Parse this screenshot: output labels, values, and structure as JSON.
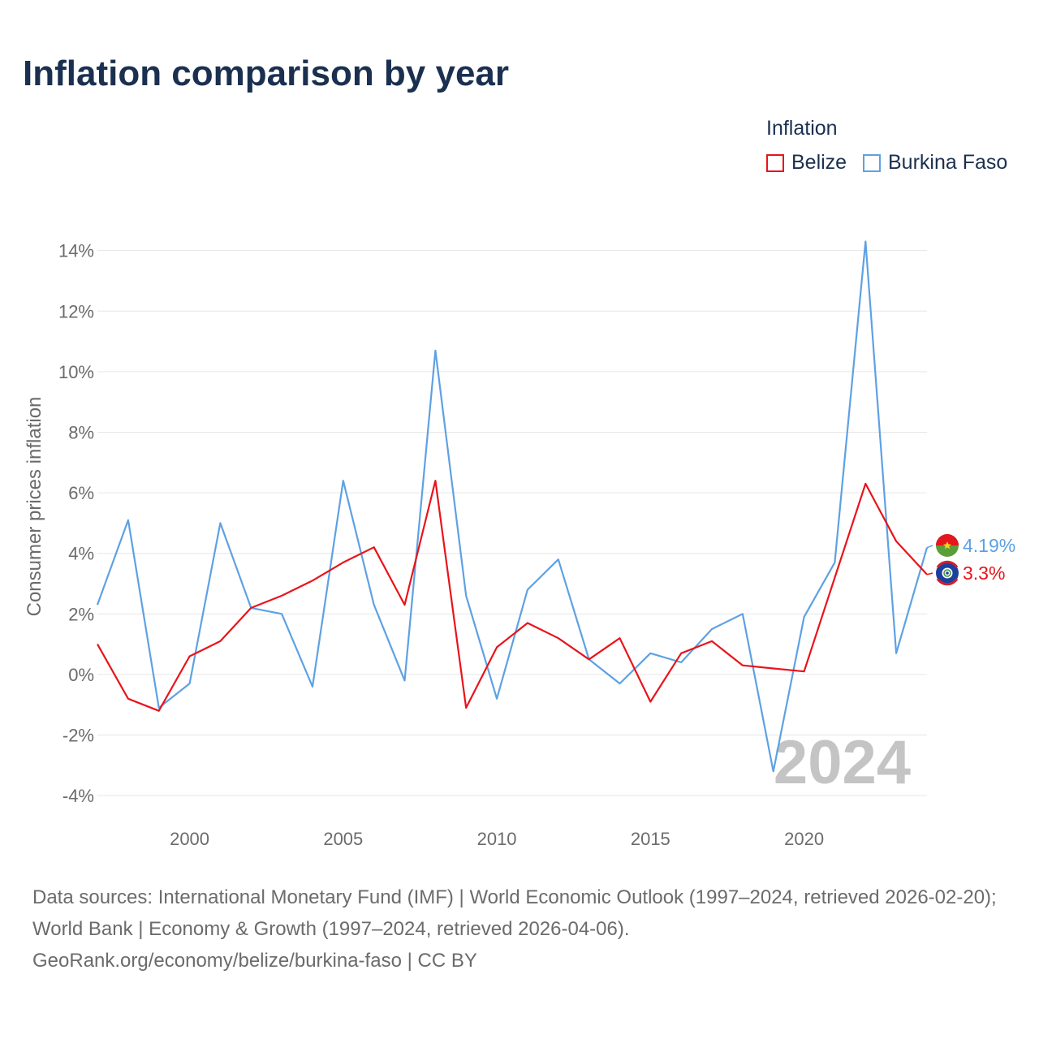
{
  "title": "Inflation comparison by year",
  "legend": {
    "title": "Inflation",
    "items": [
      {
        "label": "Belize",
        "color": "#e8141a"
      },
      {
        "label": "Burkina Faso",
        "color": "#5ea1e3"
      }
    ]
  },
  "footer": {
    "sources": "Data sources: International Monetary Fund (IMF) | World Economic Outlook (1997–2024, retrieved 2026-02-20); World Bank | Economy & Growth (1997–2024, retrieved 2026-04-06).",
    "credit": "GeoRank.org/economy/belize/burkina-faso | CC BY"
  },
  "chart_data": {
    "type": "line",
    "title": "Inflation comparison by year",
    "xlabel": "",
    "ylabel": "Consumer prices inflation",
    "xlim": [
      1997,
      2024
    ],
    "ylim": [
      -4.8,
      14.5
    ],
    "yticks": [
      -4,
      -2,
      0,
      2,
      4,
      6,
      8,
      10,
      12,
      14
    ],
    "ytick_labels": [
      "-4%",
      "-2%",
      "0%",
      "2%",
      "4%",
      "6%",
      "8%",
      "10%",
      "12%",
      "14%"
    ],
    "xticks": [
      2000,
      2005,
      2010,
      2015,
      2020
    ],
    "xtick_labels": [
      "2000",
      "2005",
      "2010",
      "2015",
      "2020"
    ],
    "grid": true,
    "year_watermark": "2024",
    "x": [
      1997,
      1998,
      1999,
      2000,
      2001,
      2002,
      2003,
      2004,
      2005,
      2006,
      2007,
      2008,
      2009,
      2010,
      2011,
      2012,
      2013,
      2014,
      2015,
      2016,
      2017,
      2018,
      2019,
      2020,
      2021,
      2022,
      2023,
      2024
    ],
    "series": [
      {
        "name": "Belize",
        "color": "#e8141a",
        "values": [
          1.0,
          -0.8,
          -1.2,
          0.6,
          1.1,
          2.2,
          2.6,
          3.1,
          3.7,
          4.2,
          2.3,
          6.4,
          -1.1,
          0.9,
          1.7,
          1.2,
          0.5,
          1.2,
          -0.9,
          0.7,
          1.1,
          0.3,
          0.2,
          0.1,
          3.2,
          6.3,
          4.4,
          3.3
        ],
        "end_label": "3.3%",
        "end_marker": "belize-flag-icon"
      },
      {
        "name": "Burkina Faso",
        "color": "#5ea1e3",
        "values": [
          2.3,
          5.1,
          -1.1,
          -0.3,
          5.0,
          2.2,
          2.0,
          -0.4,
          6.4,
          2.3,
          -0.2,
          10.7,
          2.6,
          -0.8,
          2.8,
          3.8,
          0.5,
          -0.3,
          0.7,
          0.4,
          1.5,
          2.0,
          -3.2,
          1.9,
          3.7,
          14.3,
          0.7,
          4.19
        ],
        "end_label": "4.19%",
        "end_marker": "burkina-faso-flag-icon"
      }
    ]
  }
}
